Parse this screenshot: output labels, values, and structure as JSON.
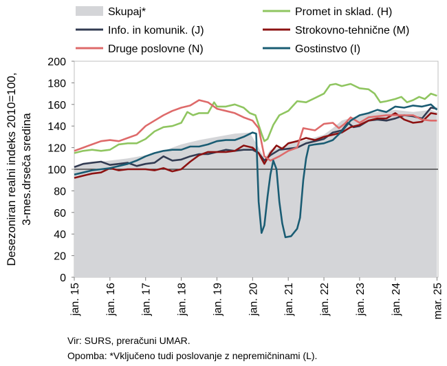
{
  "source": "Vir: SURS, preračuni UMAR.",
  "note": "Opomba: *Vključeno tudi poslovanje z nepremičninami (L).",
  "chart_data": {
    "type": "line",
    "ylabel_lines": [
      "Desezoniran realni indeks 2010=100,",
      "3-mes.drseča sredina"
    ],
    "ylim": [
      0,
      200
    ],
    "yticks": [
      0,
      20,
      40,
      60,
      80,
      100,
      120,
      140,
      160,
      180,
      200
    ],
    "xlim": [
      2015,
      2025.2
    ],
    "xticks": [
      {
        "label": "jan. 15",
        "x": 2015.0
      },
      {
        "label": "jan. 16",
        "x": 2016.0
      },
      {
        "label": "jan. 17",
        "x": 2017.0
      },
      {
        "label": "jan. 18",
        "x": 2018.0
      },
      {
        "label": "jan. 19",
        "x": 2019.0
      },
      {
        "label": "jan. 20",
        "x": 2020.0
      },
      {
        "label": "jan. 21",
        "x": 2021.0
      },
      {
        "label": "jan. 22",
        "x": 2022.0
      },
      {
        "label": "jan. 23",
        "x": 2023.0
      },
      {
        "label": "jan. 24",
        "x": 2024.0
      },
      {
        "label": "mar. 25",
        "x": 2025.17
      }
    ],
    "reference_line": 100,
    "grid": false,
    "legend_placement": "top",
    "area": {
      "name": "Skupaj*",
      "color": "#d4d5d8",
      "points": [
        [
          2015.0,
          103
        ],
        [
          2015.5,
          106
        ],
        [
          2016.0,
          108
        ],
        [
          2016.5,
          110
        ],
        [
          2017.0,
          113
        ],
        [
          2017.5,
          117
        ],
        [
          2018.0,
          123
        ],
        [
          2018.5,
          127
        ],
        [
          2019.0,
          130
        ],
        [
          2019.5,
          133
        ],
        [
          2019.92,
          134
        ],
        [
          2020.17,
          120
        ],
        [
          2020.33,
          110
        ],
        [
          2020.5,
          118
        ],
        [
          2020.75,
          120
        ],
        [
          2021.0,
          123
        ],
        [
          2021.5,
          127
        ],
        [
          2022.0,
          132
        ],
        [
          2022.25,
          138
        ],
        [
          2022.5,
          145
        ],
        [
          2023.0,
          150
        ],
        [
          2023.5,
          153
        ],
        [
          2024.0,
          155
        ],
        [
          2024.5,
          153
        ],
        [
          2025.0,
          155
        ],
        [
          2025.17,
          153
        ]
      ]
    },
    "series": [
      {
        "name": "Promet in sklad. (H)",
        "color": "#8fc560",
        "points": [
          [
            2015.0,
            115
          ],
          [
            2015.25,
            117
          ],
          [
            2015.5,
            118
          ],
          [
            2015.75,
            117
          ],
          [
            2016.0,
            118
          ],
          [
            2016.25,
            123
          ],
          [
            2016.5,
            124
          ],
          [
            2016.75,
            124
          ],
          [
            2017.0,
            128
          ],
          [
            2017.25,
            135
          ],
          [
            2017.5,
            139
          ],
          [
            2017.75,
            140
          ],
          [
            2018.0,
            143
          ],
          [
            2018.17,
            153
          ],
          [
            2018.33,
            150
          ],
          [
            2018.5,
            152
          ],
          [
            2018.75,
            152
          ],
          [
            2018.92,
            162
          ],
          [
            2019.0,
            158
          ],
          [
            2019.25,
            158
          ],
          [
            2019.5,
            160
          ],
          [
            2019.75,
            157
          ],
          [
            2019.92,
            152
          ],
          [
            2020.08,
            150
          ],
          [
            2020.25,
            133
          ],
          [
            2020.33,
            126
          ],
          [
            2020.42,
            128
          ],
          [
            2020.58,
            141
          ],
          [
            2020.75,
            150
          ],
          [
            2021.0,
            154
          ],
          [
            2021.25,
            163
          ],
          [
            2021.5,
            162
          ],
          [
            2021.75,
            166
          ],
          [
            2022.0,
            170
          ],
          [
            2022.17,
            178
          ],
          [
            2022.33,
            179
          ],
          [
            2022.5,
            177
          ],
          [
            2022.75,
            179
          ],
          [
            2023.0,
            175
          ],
          [
            2023.25,
            174
          ],
          [
            2023.42,
            170
          ],
          [
            2023.58,
            162
          ],
          [
            2023.75,
            163
          ],
          [
            2024.0,
            165
          ],
          [
            2024.17,
            167
          ],
          [
            2024.33,
            162
          ],
          [
            2024.5,
            164
          ],
          [
            2024.67,
            167
          ],
          [
            2024.83,
            165
          ],
          [
            2025.0,
            170
          ],
          [
            2025.17,
            168
          ]
        ]
      },
      {
        "name": "Info. in komunik. (J)",
        "color": "#323b52",
        "points": [
          [
            2015.0,
            102
          ],
          [
            2015.25,
            105
          ],
          [
            2015.5,
            106
          ],
          [
            2015.75,
            107
          ],
          [
            2016.0,
            104
          ],
          [
            2016.25,
            105
          ],
          [
            2016.5,
            106
          ],
          [
            2016.75,
            103
          ],
          [
            2017.0,
            105
          ],
          [
            2017.25,
            106
          ],
          [
            2017.5,
            112
          ],
          [
            2017.75,
            108
          ],
          [
            2018.0,
            109
          ],
          [
            2018.25,
            112
          ],
          [
            2018.5,
            114
          ],
          [
            2018.75,
            114
          ],
          [
            2019.0,
            116
          ],
          [
            2019.25,
            118
          ],
          [
            2019.5,
            117
          ],
          [
            2019.75,
            118
          ],
          [
            2020.0,
            118
          ],
          [
            2020.17,
            115
          ],
          [
            2020.33,
            108
          ],
          [
            2020.5,
            113
          ],
          [
            2020.75,
            118
          ],
          [
            2021.0,
            119
          ],
          [
            2021.25,
            120
          ],
          [
            2021.5,
            124
          ],
          [
            2021.75,
            126
          ],
          [
            2022.0,
            128
          ],
          [
            2022.25,
            134
          ],
          [
            2022.5,
            136
          ],
          [
            2022.67,
            143
          ],
          [
            2022.83,
            139
          ],
          [
            2023.0,
            140
          ],
          [
            2023.25,
            145
          ],
          [
            2023.5,
            146
          ],
          [
            2023.75,
            145
          ],
          [
            2024.0,
            147
          ],
          [
            2024.25,
            150
          ],
          [
            2024.5,
            149
          ],
          [
            2024.75,
            147
          ],
          [
            2025.0,
            157
          ],
          [
            2025.17,
            156
          ]
        ]
      },
      {
        "name": "Strokovno-tehnične (M)",
        "color": "#8c1212",
        "points": [
          [
            2015.0,
            92
          ],
          [
            2015.25,
            94
          ],
          [
            2015.5,
            96
          ],
          [
            2015.75,
            97
          ],
          [
            2016.0,
            101
          ],
          [
            2016.25,
            99
          ],
          [
            2016.5,
            100
          ],
          [
            2016.75,
            100
          ],
          [
            2017.0,
            100
          ],
          [
            2017.25,
            99
          ],
          [
            2017.5,
            101
          ],
          [
            2017.75,
            98
          ],
          [
            2018.0,
            100
          ],
          [
            2018.25,
            107
          ],
          [
            2018.5,
            113
          ],
          [
            2018.75,
            116
          ],
          [
            2019.0,
            116
          ],
          [
            2019.25,
            116
          ],
          [
            2019.5,
            117
          ],
          [
            2019.75,
            122
          ],
          [
            2020.0,
            120
          ],
          [
            2020.17,
            115
          ],
          [
            2020.33,
            105
          ],
          [
            2020.5,
            115
          ],
          [
            2020.67,
            122
          ],
          [
            2020.83,
            119
          ],
          [
            2021.0,
            124
          ],
          [
            2021.25,
            126
          ],
          [
            2021.5,
            129
          ],
          [
            2021.75,
            127
          ],
          [
            2022.0,
            130
          ],
          [
            2022.25,
            132
          ],
          [
            2022.5,
            134
          ],
          [
            2022.75,
            139
          ],
          [
            2023.0,
            141
          ],
          [
            2023.25,
            145
          ],
          [
            2023.5,
            147
          ],
          [
            2023.75,
            147
          ],
          [
            2024.0,
            152
          ],
          [
            2024.25,
            146
          ],
          [
            2024.5,
            143
          ],
          [
            2024.75,
            144
          ],
          [
            2025.0,
            152
          ],
          [
            2025.17,
            151
          ]
        ]
      },
      {
        "name": "Druge poslovne (N)",
        "color": "#de6a6a",
        "points": [
          [
            2015.0,
            117
          ],
          [
            2015.25,
            120
          ],
          [
            2015.5,
            123
          ],
          [
            2015.75,
            126
          ],
          [
            2016.0,
            127
          ],
          [
            2016.25,
            126
          ],
          [
            2016.5,
            129
          ],
          [
            2016.75,
            132
          ],
          [
            2017.0,
            140
          ],
          [
            2017.25,
            145
          ],
          [
            2017.5,
            150
          ],
          [
            2017.75,
            154
          ],
          [
            2018.0,
            157
          ],
          [
            2018.25,
            159
          ],
          [
            2018.5,
            164
          ],
          [
            2018.75,
            162
          ],
          [
            2019.0,
            156
          ],
          [
            2019.25,
            154
          ],
          [
            2019.5,
            152
          ],
          [
            2019.75,
            148
          ],
          [
            2020.0,
            145
          ],
          [
            2020.17,
            138
          ],
          [
            2020.33,
            112
          ],
          [
            2020.5,
            108
          ],
          [
            2020.75,
            112
          ],
          [
            2021.0,
            117
          ],
          [
            2021.25,
            120
          ],
          [
            2021.42,
            138
          ],
          [
            2021.58,
            137
          ],
          [
            2021.75,
            136
          ],
          [
            2022.0,
            142
          ],
          [
            2022.25,
            143
          ],
          [
            2022.42,
            138
          ],
          [
            2022.58,
            142
          ],
          [
            2022.75,
            148
          ],
          [
            2023.0,
            143
          ],
          [
            2023.25,
            148
          ],
          [
            2023.5,
            149
          ],
          [
            2023.75,
            150
          ],
          [
            2024.0,
            150
          ],
          [
            2024.25,
            150
          ],
          [
            2024.5,
            150
          ],
          [
            2024.75,
            146
          ],
          [
            2025.0,
            145
          ],
          [
            2025.17,
            145
          ]
        ]
      },
      {
        "name": "Gostinstvo (I)",
        "color": "#1a5c73",
        "points": [
          [
            2015.0,
            95
          ],
          [
            2015.25,
            97
          ],
          [
            2015.5,
            99
          ],
          [
            2015.75,
            100
          ],
          [
            2016.0,
            101
          ],
          [
            2016.25,
            103
          ],
          [
            2016.5,
            105
          ],
          [
            2016.75,
            108
          ],
          [
            2017.0,
            112
          ],
          [
            2017.25,
            115
          ],
          [
            2017.5,
            117
          ],
          [
            2017.75,
            118
          ],
          [
            2018.0,
            118
          ],
          [
            2018.25,
            121
          ],
          [
            2018.5,
            121
          ],
          [
            2018.75,
            123
          ],
          [
            2019.0,
            126
          ],
          [
            2019.25,
            127
          ],
          [
            2019.5,
            127
          ],
          [
            2019.75,
            130
          ],
          [
            2020.0,
            134
          ],
          [
            2020.1,
            133
          ],
          [
            2020.17,
            70
          ],
          [
            2020.25,
            41
          ],
          [
            2020.33,
            48
          ],
          [
            2020.42,
            75
          ],
          [
            2020.5,
            95
          ],
          [
            2020.58,
            108
          ],
          [
            2020.67,
            100
          ],
          [
            2020.75,
            70
          ],
          [
            2020.83,
            50
          ],
          [
            2020.92,
            37
          ],
          [
            2021.08,
            38
          ],
          [
            2021.25,
            45
          ],
          [
            2021.33,
            55
          ],
          [
            2021.42,
            90
          ],
          [
            2021.5,
            110
          ],
          [
            2021.58,
            122
          ],
          [
            2021.75,
            123
          ],
          [
            2022.0,
            124
          ],
          [
            2022.25,
            127
          ],
          [
            2022.5,
            135
          ],
          [
            2022.75,
            145
          ],
          [
            2023.0,
            150
          ],
          [
            2023.25,
            152
          ],
          [
            2023.5,
            155
          ],
          [
            2023.75,
            153
          ],
          [
            2024.0,
            158
          ],
          [
            2024.25,
            157
          ],
          [
            2024.5,
            159
          ],
          [
            2024.75,
            158
          ],
          [
            2025.0,
            160
          ],
          [
            2025.17,
            155
          ]
        ]
      }
    ]
  }
}
